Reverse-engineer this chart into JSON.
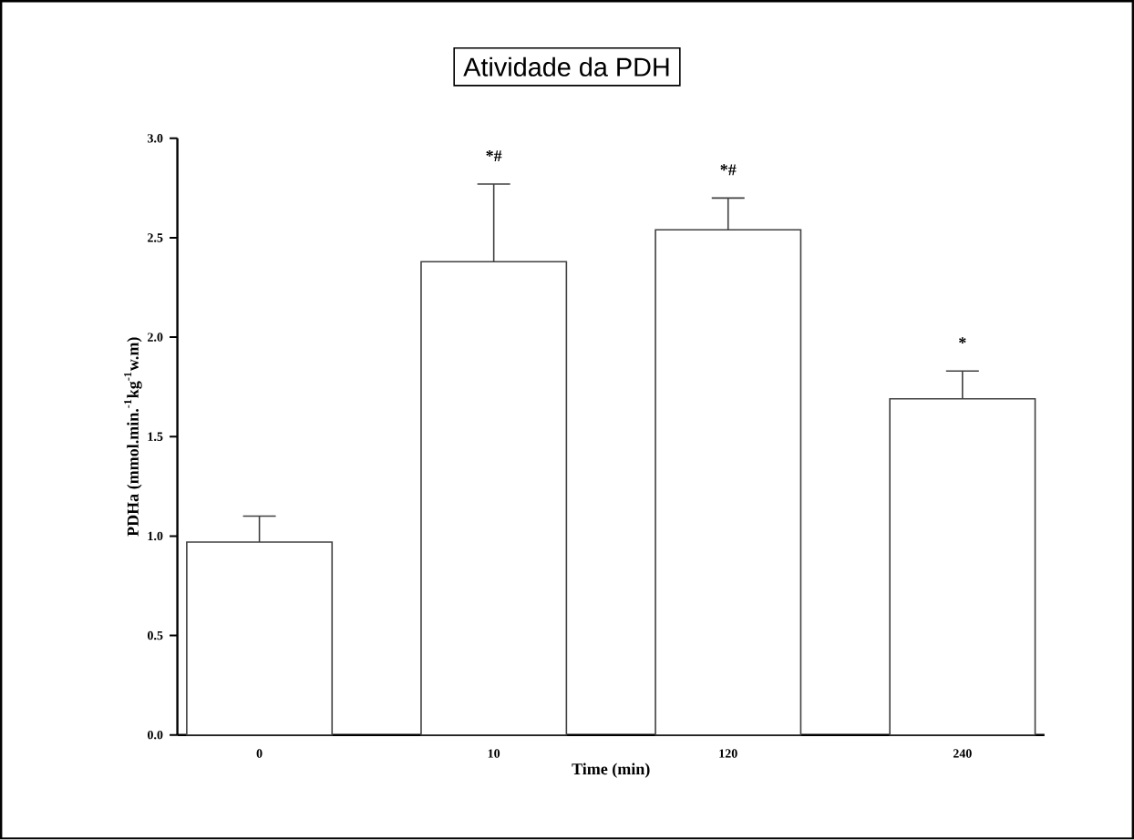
{
  "chart_data": {
    "type": "bar",
    "title": "Atividade da PDH",
    "xlabel": "Time (min)",
    "ylabel": "PDHa (mmol.min.$^{-1}$kg$^{-1}$w.m)",
    "categories": [
      "0",
      "10",
      "120",
      "240"
    ],
    "values": [
      0.97,
      2.38,
      2.54,
      1.69
    ],
    "errors": [
      [
        0.97,
        1.1
      ],
      [
        2.38,
        2.77
      ],
      [
        2.54,
        2.7
      ],
      [
        1.69,
        1.83
      ]
    ],
    "color": "#ffffff",
    "ylim": [
      0,
      3
    ],
    "yticks": [
      {
        "value": 0,
        "label": "0.0"
      },
      {
        "value": 0.5,
        "label": "0.5"
      },
      {
        "value": 1,
        "label": "1.0"
      },
      {
        "value": 1.5,
        "label": "1.5"
      },
      {
        "value": 2,
        "label": "2.0"
      },
      {
        "value": 2.5,
        "label": "2.5"
      },
      {
        "value": 3,
        "label": "3.0"
      }
    ],
    "grid": false,
    "annotations": [
      "*#",
      "*#",
      "*"
    ]
  }
}
